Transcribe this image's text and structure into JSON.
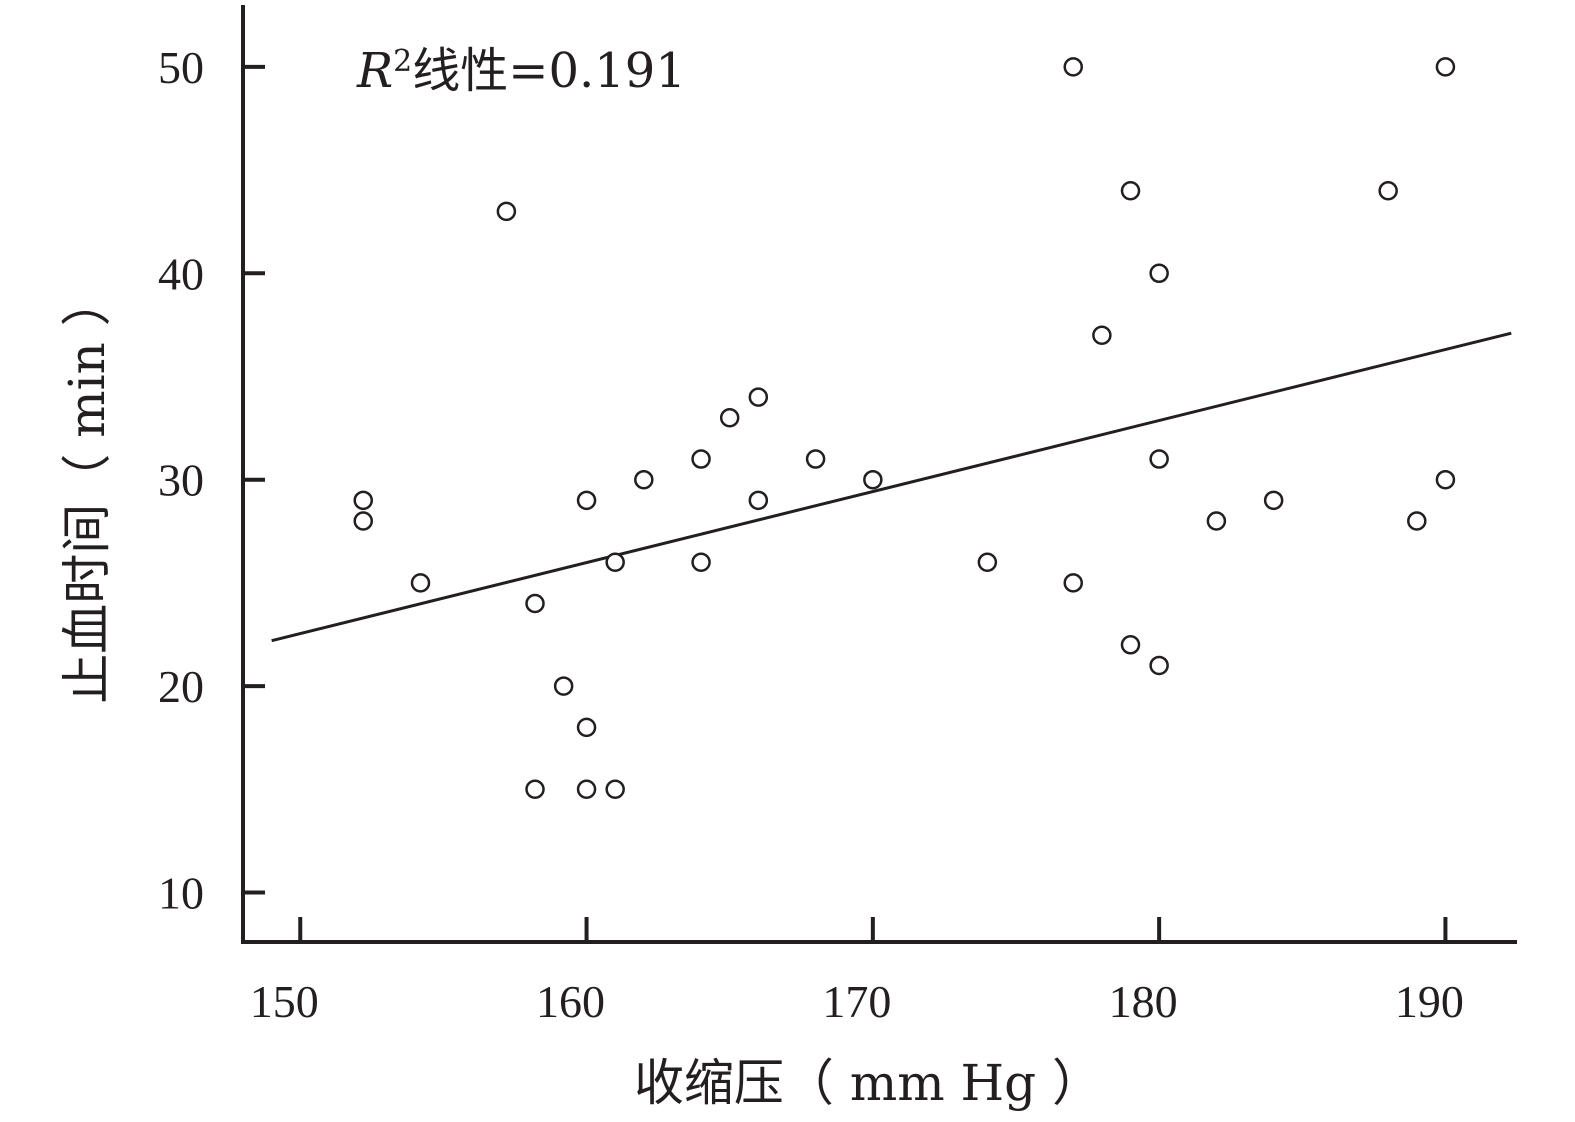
{
  "chart_data": {
    "type": "scatter",
    "title": "",
    "xlabel": "收缩压（ mm Hg ）",
    "ylabel": "止血时间（ min ）",
    "xlim": [
      148,
      192.5
    ],
    "ylim": [
      7.6,
      53
    ],
    "xticks": [
      150,
      160,
      170,
      180,
      190
    ],
    "yticks": [
      10,
      20,
      30,
      40,
      50
    ],
    "grid": false,
    "legend": "none",
    "annotation": {
      "prefix": "R",
      "superscript": "2",
      "text": "线性=0.191"
    },
    "points": [
      {
        "x": 152.2,
        "y": 29
      },
      {
        "x": 152.2,
        "y": 28
      },
      {
        "x": 154.2,
        "y": 25
      },
      {
        "x": 157.2,
        "y": 43
      },
      {
        "x": 158.2,
        "y": 24
      },
      {
        "x": 158.2,
        "y": 15
      },
      {
        "x": 159.2,
        "y": 20
      },
      {
        "x": 160,
        "y": 29
      },
      {
        "x": 160,
        "y": 18
      },
      {
        "x": 160,
        "y": 15
      },
      {
        "x": 161,
        "y": 26
      },
      {
        "x": 161,
        "y": 15
      },
      {
        "x": 162,
        "y": 30
      },
      {
        "x": 164,
        "y": 31
      },
      {
        "x": 164,
        "y": 26
      },
      {
        "x": 165,
        "y": 33
      },
      {
        "x": 166,
        "y": 34
      },
      {
        "x": 166,
        "y": 29
      },
      {
        "x": 168,
        "y": 31
      },
      {
        "x": 170,
        "y": 30
      },
      {
        "x": 174,
        "y": 26
      },
      {
        "x": 177,
        "y": 50
      },
      {
        "x": 177,
        "y": 25
      },
      {
        "x": 178,
        "y": 37
      },
      {
        "x": 179,
        "y": 44
      },
      {
        "x": 179,
        "y": 22
      },
      {
        "x": 180,
        "y": 40
      },
      {
        "x": 180,
        "y": 31
      },
      {
        "x": 180,
        "y": 21
      },
      {
        "x": 182,
        "y": 28
      },
      {
        "x": 184,
        "y": 29
      },
      {
        "x": 188,
        "y": 44
      },
      {
        "x": 189,
        "y": 28
      },
      {
        "x": 190,
        "y": 50
      },
      {
        "x": 190,
        "y": 30
      }
    ],
    "fit_line": {
      "x": [
        149,
        192.3
      ],
      "y": [
        22.2,
        37.1
      ]
    }
  }
}
